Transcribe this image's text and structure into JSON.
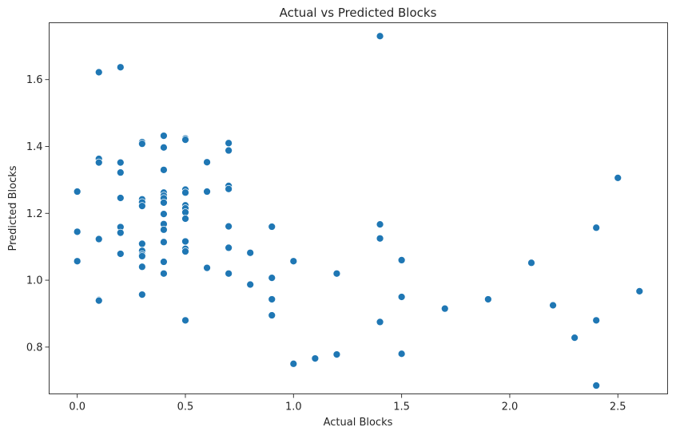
{
  "chart_data": {
    "type": "scatter",
    "title": "Actual vs Predicted Blocks",
    "xlabel": "Actual Blocks",
    "ylabel": "Predicted Blocks",
    "xlim": [
      -0.13,
      2.73
    ],
    "ylim": [
      0.66,
      1.77
    ],
    "xticks": [
      0.0,
      0.5,
      1.0,
      1.5,
      2.0,
      2.5
    ],
    "xtick_labels": [
      "0.0",
      "0.5",
      "1.0",
      "1.5",
      "2.0",
      "2.5"
    ],
    "yticks": [
      0.8,
      1.0,
      1.2,
      1.4,
      1.6
    ],
    "ytick_labels": [
      "0.8",
      "1.0",
      "1.2",
      "1.4",
      "1.6"
    ],
    "grid": false,
    "marker_color": "#1f77b4",
    "points": [
      [
        0.0,
        1.265
      ],
      [
        0.0,
        1.145
      ],
      [
        0.0,
        1.057
      ],
      [
        0.1,
        1.622
      ],
      [
        0.1,
        1.363
      ],
      [
        0.1,
        1.352
      ],
      [
        0.1,
        1.123
      ],
      [
        0.1,
        0.941
      ],
      [
        0.1,
        0.939
      ],
      [
        0.2,
        1.637
      ],
      [
        0.2,
        1.352
      ],
      [
        0.2,
        1.322
      ],
      [
        0.2,
        1.246
      ],
      [
        0.2,
        1.159
      ],
      [
        0.2,
        1.142
      ],
      [
        0.2,
        1.079
      ],
      [
        0.3,
        1.413
      ],
      [
        0.3,
        1.408
      ],
      [
        0.3,
        1.242
      ],
      [
        0.3,
        1.233
      ],
      [
        0.3,
        1.222
      ],
      [
        0.3,
        1.109
      ],
      [
        0.3,
        1.088
      ],
      [
        0.3,
        1.077
      ],
      [
        0.3,
        1.072
      ],
      [
        0.3,
        1.04
      ],
      [
        0.3,
        0.957
      ],
      [
        0.4,
        1.432
      ],
      [
        0.4,
        1.397
      ],
      [
        0.4,
        1.33
      ],
      [
        0.4,
        1.262
      ],
      [
        0.4,
        1.253
      ],
      [
        0.4,
        1.245
      ],
      [
        0.4,
        1.232
      ],
      [
        0.4,
        1.198
      ],
      [
        0.4,
        1.168
      ],
      [
        0.4,
        1.151
      ],
      [
        0.4,
        1.114
      ],
      [
        0.4,
        1.055
      ],
      [
        0.4,
        1.02
      ],
      [
        0.5,
        1.424
      ],
      [
        0.5,
        1.42
      ],
      [
        0.5,
        1.271
      ],
      [
        0.5,
        1.262
      ],
      [
        0.5,
        1.224
      ],
      [
        0.5,
        1.215
      ],
      [
        0.5,
        1.203
      ],
      [
        0.5,
        1.184
      ],
      [
        0.5,
        1.116
      ],
      [
        0.5,
        1.094
      ],
      [
        0.5,
        1.086
      ],
      [
        0.5,
        0.88
      ],
      [
        0.6,
        1.353
      ],
      [
        0.6,
        1.265
      ],
      [
        0.6,
        1.037
      ],
      [
        0.7,
        1.41
      ],
      [
        0.7,
        1.388
      ],
      [
        0.7,
        1.282
      ],
      [
        0.7,
        1.273
      ],
      [
        0.7,
        1.161
      ],
      [
        0.7,
        1.097
      ],
      [
        0.7,
        1.02
      ],
      [
        0.8,
        1.082
      ],
      [
        0.8,
        0.987
      ],
      [
        0.9,
        1.16
      ],
      [
        0.9,
        1.007
      ],
      [
        0.9,
        0.943
      ],
      [
        0.9,
        0.895
      ],
      [
        1.0,
        1.057
      ],
      [
        1.0,
        0.75
      ],
      [
        1.1,
        0.766
      ],
      [
        1.2,
        1.02
      ],
      [
        1.2,
        0.778
      ],
      [
        1.4,
        1.73
      ],
      [
        1.4,
        1.167
      ],
      [
        1.4,
        1.125
      ],
      [
        1.4,
        0.875
      ],
      [
        1.5,
        1.06
      ],
      [
        1.5,
        0.95
      ],
      [
        1.5,
        0.78
      ],
      [
        1.7,
        0.915
      ],
      [
        1.9,
        0.943
      ],
      [
        2.1,
        1.052
      ],
      [
        2.2,
        0.925
      ],
      [
        2.3,
        0.828
      ],
      [
        2.4,
        1.157
      ],
      [
        2.4,
        0.88
      ],
      [
        2.4,
        0.685
      ],
      [
        2.5,
        1.306
      ],
      [
        2.6,
        0.967
      ]
    ]
  }
}
